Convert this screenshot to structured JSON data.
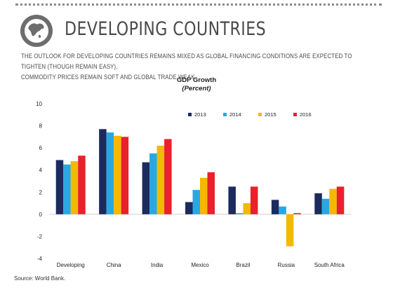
{
  "header": {
    "title": "DEVELOPING COUNTRIES",
    "subtitle_line1": "THE OUTLOOK FOR DEVELOPING COUNTRIES REMAINS MIXED AS GLOBAL FINANCING CONDITIONS ARE EXPECTED TO TIGHTEN (THOUGH REMAIN EASY),",
    "subtitle_line2": "COMMODITY PRICES REMAIN SOFT AND GLOBAL TRADE WEAK.",
    "icon": "globe-icon"
  },
  "footer": {
    "source": "Source: World Bank."
  },
  "colors": {
    "2013": "#1d2a5e",
    "2014": "#2aa7e0",
    "2015": "#f5b800",
    "2016": "#e8212b"
  },
  "chart_data": {
    "type": "bar",
    "title": "GDP Growth",
    "subtitle": "(Percent)",
    "xlabel": "",
    "ylabel": "",
    "ylim": [
      -4,
      10
    ],
    "yticks": [
      "-4",
      "-2",
      "0",
      "2",
      "4",
      "6",
      "8",
      "10"
    ],
    "grid": false,
    "legend": "top-right",
    "categories": [
      "Developing",
      "China",
      "India",
      "Mexico",
      "Brazil",
      "Russia",
      "South Africa"
    ],
    "series": [
      {
        "name": "2013",
        "values": [
          4.9,
          7.7,
          4.7,
          1.1,
          2.5,
          1.3,
          1.9
        ]
      },
      {
        "name": "2014",
        "values": [
          4.5,
          7.4,
          5.5,
          2.2,
          0.1,
          0.7,
          1.4
        ]
      },
      {
        "name": "2015",
        "values": [
          4.8,
          7.1,
          6.2,
          3.3,
          1.0,
          -2.9,
          2.3
        ]
      },
      {
        "name": "2016",
        "values": [
          5.3,
          7.0,
          6.8,
          3.8,
          2.5,
          0.1,
          2.5
        ]
      }
    ]
  }
}
